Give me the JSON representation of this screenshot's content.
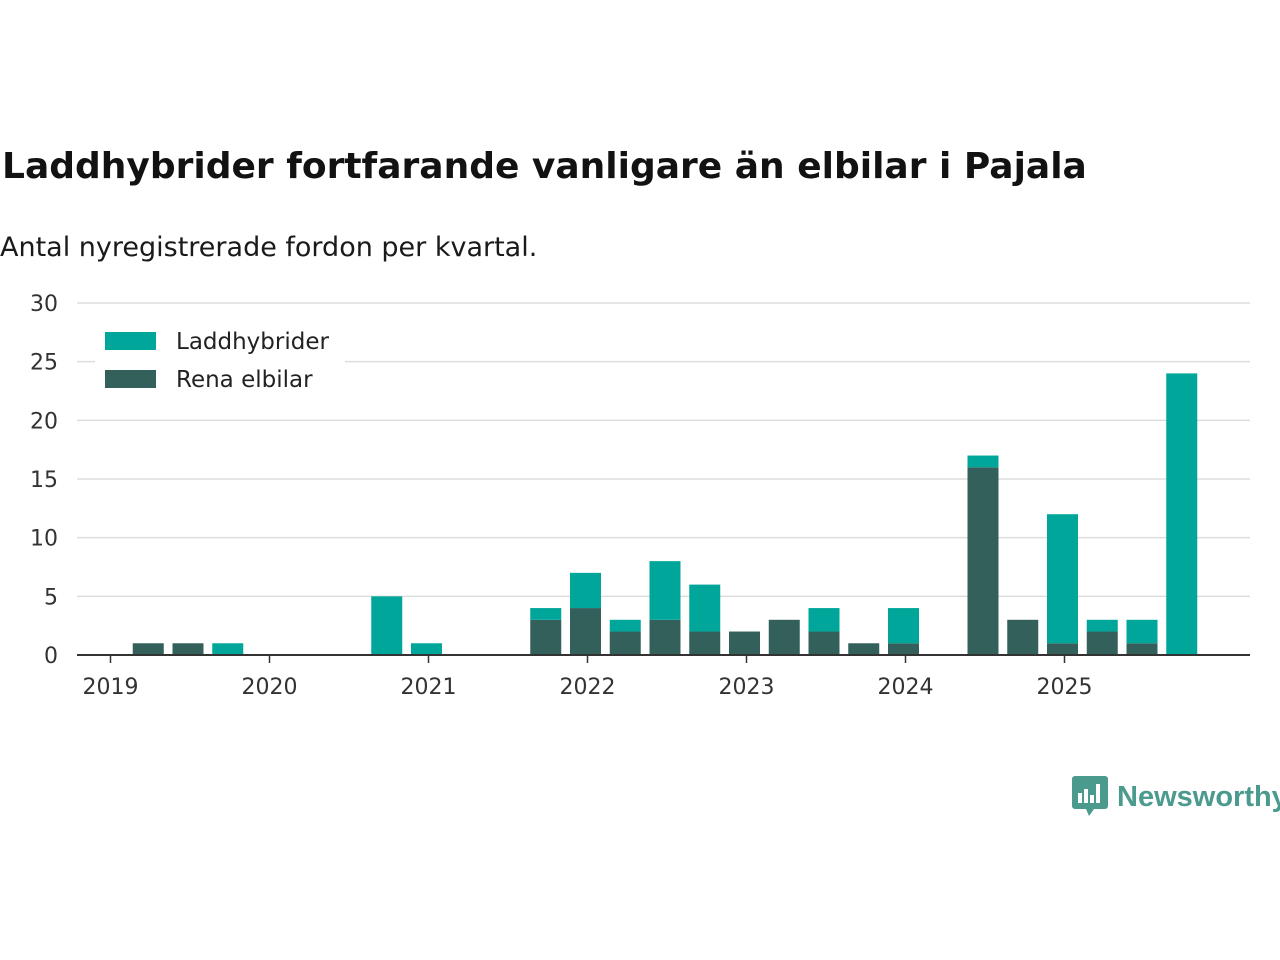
{
  "title": "Laddhybrider fortfarande vanligare än elbilar i Pajala",
  "subtitle": "Antal nyregistrerade fordon per kvartal.",
  "brand": {
    "name": "Newsworthy",
    "icon": "bar-chart-bubble-icon"
  },
  "colors": {
    "laddhybrider": "#00a69a",
    "rena_elbilar": "#33605a",
    "brand": "#4a9a8e",
    "gridline": "#dddddd",
    "axis": "#333333"
  },
  "chart_data": {
    "type": "bar",
    "stacked": true,
    "title": "Laddhybrider fortfarande vanligare än elbilar i Pajala",
    "subtitle": "Antal nyregistrerade fordon per kvartal.",
    "xlabel": "",
    "ylabel": "",
    "ylim": [
      0,
      30
    ],
    "yticks": [
      0,
      5,
      10,
      15,
      20,
      25,
      30
    ],
    "xtick_labels": [
      "2019",
      "2020",
      "2021",
      "2022",
      "2023",
      "2024",
      "2025"
    ],
    "grid": true,
    "legend_position": "top-left",
    "categories": [
      "2019 Q1",
      "2019 Q2",
      "2019 Q3",
      "2019 Q4",
      "2020 Q1",
      "2020 Q2",
      "2020 Q3",
      "2020 Q4",
      "2021 Q1",
      "2021 Q2",
      "2021 Q3",
      "2021 Q4",
      "2022 Q1",
      "2022 Q2",
      "2022 Q3",
      "2022 Q4",
      "2023 Q1",
      "2023 Q2",
      "2023 Q3",
      "2023 Q4",
      "2024 Q1",
      "2024 Q2",
      "2024 Q3",
      "2024 Q4",
      "2025 Q1",
      "2025 Q2",
      "2025 Q3",
      "2025 Q4"
    ],
    "series": [
      {
        "name": "Rena elbilar",
        "key": "rena_elbilar",
        "values": [
          0,
          1,
          1,
          0,
          0,
          0,
          0,
          0,
          0,
          0,
          0,
          3,
          4,
          2,
          3,
          2,
          2,
          3,
          2,
          1,
          1,
          0,
          16,
          3,
          1,
          2,
          1,
          0
        ]
      },
      {
        "name": "Laddhybrider",
        "key": "laddhybrider",
        "values": [
          0,
          0,
          0,
          1,
          0,
          0,
          0,
          5,
          1,
          0,
          0,
          1,
          3,
          1,
          5,
          4,
          0,
          0,
          2,
          0,
          3,
          0,
          1,
          0,
          11,
          1,
          2,
          24
        ]
      }
    ],
    "legend": [
      "Laddhybrider",
      "Rena elbilar"
    ]
  }
}
